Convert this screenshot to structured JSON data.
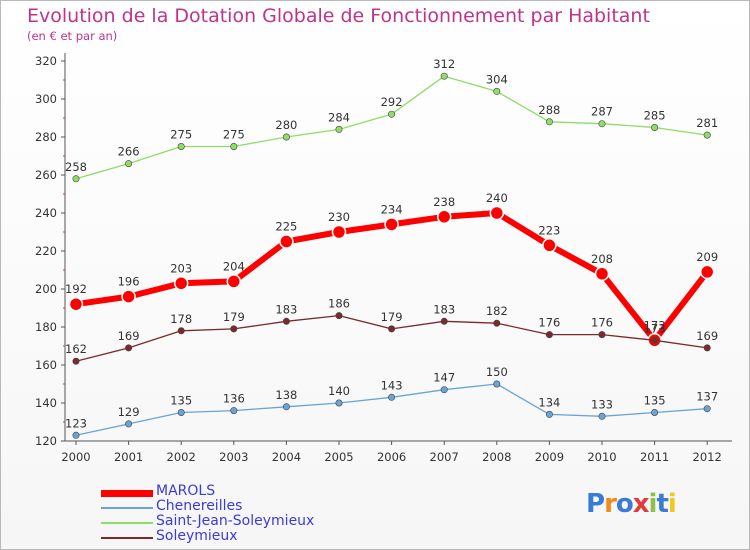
{
  "title": "Evolution de la Dotation Globale de Fonctionnement par Habitant",
  "subtitle": "(en € et par an)",
  "logo_text": "Proxiti",
  "chart_data": {
    "type": "line",
    "title": "Evolution de la Dotation Globale de Fonctionnement par Habitant",
    "subtitle": "(en € et par an)",
    "categories": [
      "2000",
      "2001",
      "2002",
      "2003",
      "2004",
      "2005",
      "2006",
      "2007",
      "2008",
      "2009",
      "2010",
      "2011",
      "2012"
    ],
    "ylim": [
      120,
      320
    ],
    "yticks": [
      120,
      140,
      160,
      180,
      200,
      220,
      240,
      260,
      280,
      300,
      320
    ],
    "grid": false,
    "legend_position": "bottom-left",
    "series": [
      {
        "name": "MAROLS",
        "color": "#ff0000",
        "values": [
          192,
          196,
          203,
          204,
          225,
          230,
          234,
          238,
          240,
          223,
          208,
          173,
          209
        ]
      },
      {
        "name": "Chenereilles",
        "color": "#6aa4d5",
        "values": [
          123,
          129,
          135,
          136,
          138,
          140,
          143,
          147,
          150,
          134,
          133,
          135,
          137
        ]
      },
      {
        "name": "Saint-Jean-Soleymieux",
        "color": "#8fdc66",
        "values": [
          258,
          266,
          275,
          275,
          280,
          284,
          292,
          312,
          304,
          288,
          287,
          285,
          281
        ]
      },
      {
        "name": "Soleymieux",
        "color": "#7a2a2a",
        "values": [
          162,
          169,
          178,
          179,
          183,
          186,
          179,
          183,
          182,
          176,
          176,
          173,
          169
        ]
      }
    ]
  }
}
